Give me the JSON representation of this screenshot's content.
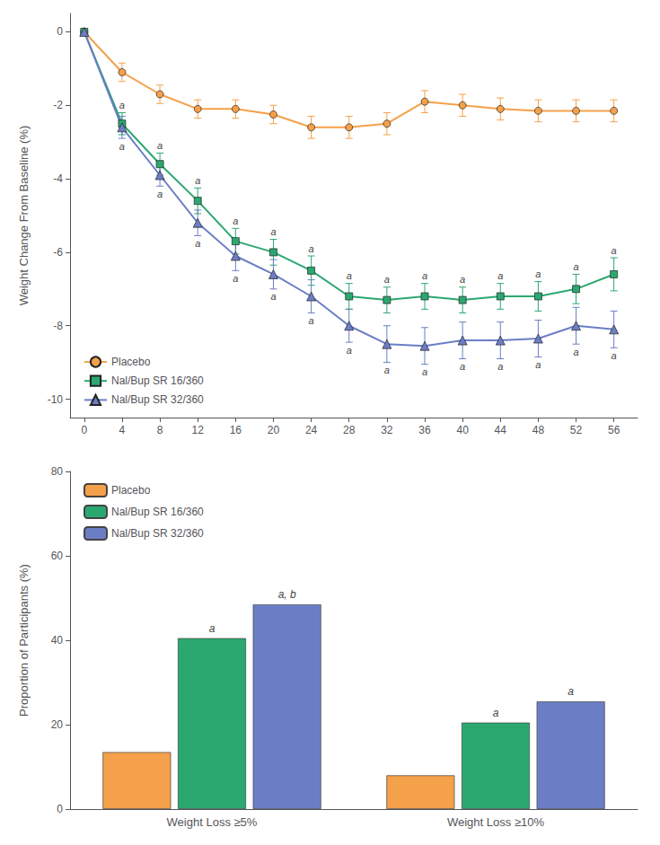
{
  "chart_data": [
    {
      "type": "line",
      "x": [
        0,
        4,
        8,
        12,
        16,
        20,
        24,
        28,
        32,
        36,
        40,
        44,
        48,
        52,
        56
      ],
      "xlim": [
        -1.5,
        58.5
      ],
      "xticks": [
        0,
        4,
        8,
        12,
        16,
        20,
        24,
        28,
        32,
        36,
        40,
        44,
        48,
        52,
        56
      ],
      "ylim": [
        -10.5,
        0.5
      ],
      "yticks": [
        0,
        -2,
        -4,
        -6,
        -8,
        -10
      ],
      "ylabel": "Weight Change From Baseline (%)",
      "grid": false,
      "legend": "lower left",
      "series": [
        {
          "name": "Placebo",
          "color": "#F5A04A",
          "marker": "circle",
          "values": [
            0,
            -1.1,
            -1.7,
            -2.1,
            -2.1,
            -2.25,
            -2.6,
            -2.6,
            -2.5,
            -1.9,
            -2.0,
            -2.1,
            -2.15,
            -2.15,
            -2.15
          ],
          "errors": [
            0,
            0.25,
            0.25,
            0.25,
            0.25,
            0.25,
            0.3,
            0.3,
            0.3,
            0.3,
            0.3,
            0.3,
            0.3,
            0.3,
            0.3
          ]
        },
        {
          "name": "Nal/Bup SR 16/360",
          "color": "#2BA870",
          "marker": "square",
          "values": [
            0,
            -2.5,
            -3.6,
            -4.6,
            -5.7,
            -6.0,
            -6.5,
            -7.2,
            -7.3,
            -7.2,
            -7.3,
            -7.2,
            -7.2,
            -7.0,
            -6.6
          ],
          "errors": [
            0,
            0.3,
            0.3,
            0.35,
            0.35,
            0.35,
            0.4,
            0.35,
            0.35,
            0.35,
            0.35,
            0.35,
            0.4,
            0.4,
            0.45
          ],
          "annotations": [
            null,
            "a",
            "a",
            "a",
            "a",
            "a",
            "a",
            "a",
            "a",
            "a",
            "a",
            "a",
            "a",
            "a",
            "a"
          ]
        },
        {
          "name": "Nal/Bup SR 32/360",
          "color": "#6B7EC5",
          "marker": "triangle",
          "values": [
            0,
            -2.6,
            -3.9,
            -5.2,
            -6.1,
            -6.6,
            -7.2,
            -8.0,
            -8.5,
            -8.55,
            -8.4,
            -8.4,
            -8.35,
            -8.0,
            -8.1
          ],
          "errors": [
            0,
            0.3,
            0.3,
            0.35,
            0.4,
            0.4,
            0.45,
            0.45,
            0.5,
            0.5,
            0.5,
            0.5,
            0.5,
            0.5,
            0.5
          ],
          "annotations": [
            null,
            "a",
            "a",
            "a",
            "a",
            "a",
            "a",
            "a",
            "a",
            "a",
            "a",
            "a",
            "a",
            "a",
            "a"
          ]
        }
      ]
    },
    {
      "type": "bar",
      "categories": [
        "Weight Loss ≥5%",
        "Weight Loss ≥10%"
      ],
      "ylim": [
        0,
        80
      ],
      "yticks": [
        0,
        20,
        40,
        60,
        80
      ],
      "ylabel": "Proportion of Participants (%)",
      "grid": false,
      "legend": "upper left",
      "series": [
        {
          "name": "Placebo",
          "color": "#F5A04A",
          "values": [
            13.5,
            8.0
          ]
        },
        {
          "name": "Nal/Bup SR 16/360",
          "color": "#2BA870",
          "values": [
            40.5,
            20.5
          ],
          "annotations": [
            "a",
            "a"
          ]
        },
        {
          "name": "Nal/Bup SR 32/360",
          "color": "#6B7EC5",
          "values": [
            48.5,
            25.5
          ],
          "annotations": [
            "a, b",
            "a"
          ]
        }
      ]
    }
  ]
}
